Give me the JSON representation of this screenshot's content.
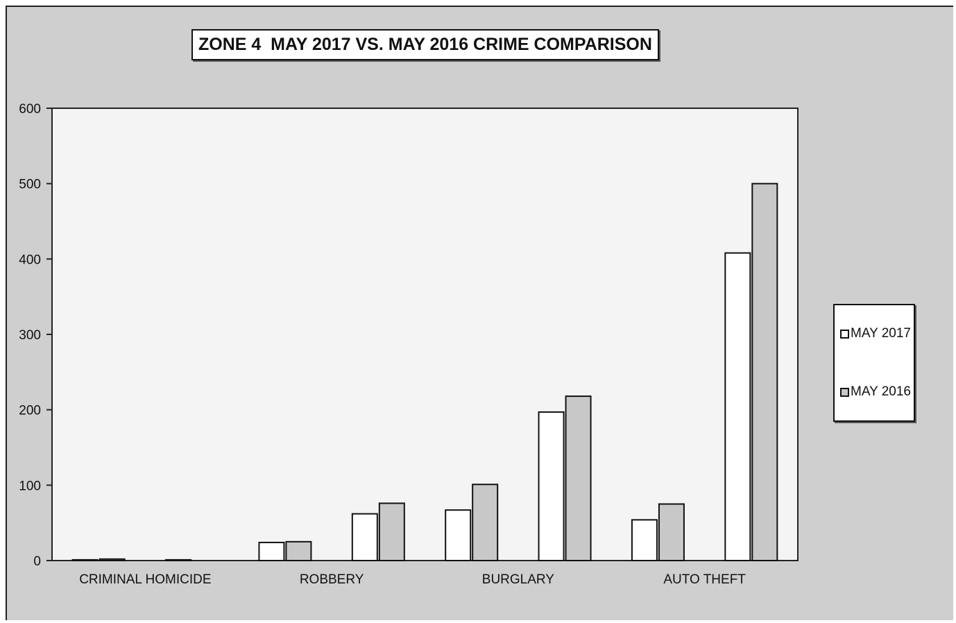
{
  "chart_data": {
    "type": "bar",
    "title": "ZONE 4  MAY 2017 VS. MAY 2016 CRIME COMPARISON",
    "xlabel": "",
    "ylabel": "",
    "ylim": [
      0,
      600
    ],
    "yticks": [
      0,
      100,
      200,
      300,
      400,
      500,
      600
    ],
    "category_labels": [
      "CRIMINAL HOMICIDE",
      "",
      "ROBBERY",
      "",
      "BURGLARY",
      "",
      "AUTO THEFT",
      ""
    ],
    "series": [
      {
        "name": "MAY 2017",
        "color": "#ffffff",
        "values": [
          1,
          1,
          24,
          62,
          67,
          197,
          54,
          408
        ]
      },
      {
        "name": "MAY 2016",
        "color": "#c8c8c8",
        "values": [
          2,
          0,
          25,
          76,
          101,
          218,
          75,
          500
        ]
      }
    ],
    "grid": false,
    "legend_position": "right"
  }
}
